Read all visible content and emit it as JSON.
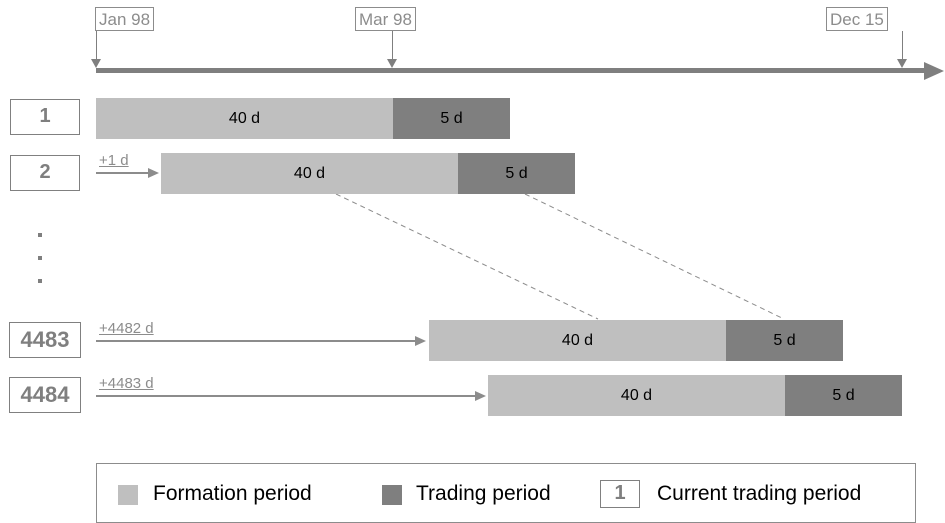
{
  "timeline": {
    "start": "Jan 98",
    "marker": "Mar 98",
    "end": "Dec 15"
  },
  "periods": [
    {
      "id": "1",
      "offset": "",
      "formation": "40 d",
      "trading": "5 d"
    },
    {
      "id": "2",
      "offset": "+1 d",
      "formation": "40 d",
      "trading": "5 d"
    },
    {
      "id": "4483",
      "offset": "+4482 d",
      "formation": "40 d",
      "trading": "5 d"
    },
    {
      "id": "4484",
      "offset": "+4483 d",
      "formation": "40 d",
      "trading": "5 d"
    }
  ],
  "ellipsis": ".",
  "legend": {
    "formation": "Formation period",
    "trading": "Trading period",
    "current_box": "1",
    "current": "Current trading period"
  },
  "colors": {
    "formation": "#bfbfbf",
    "trading": "#7f7f7f",
    "outline": "#808080"
  }
}
